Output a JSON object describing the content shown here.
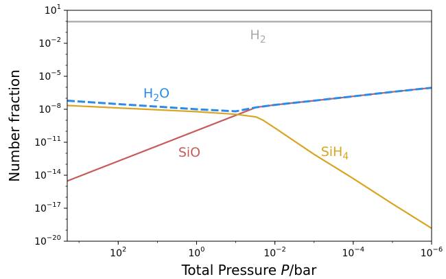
{
  "chart_data": {
    "type": "line",
    "xlabel_prefix": "Total Pressure ",
    "xlabel_var": "P",
    "xlabel_unit": "/bar",
    "ylabel": "Number fraction",
    "x_scale": "log",
    "x_reversed": true,
    "y_scale": "log",
    "xlim": [
      2000,
      1e-06
    ],
    "ylim": [
      1e-20,
      10
    ],
    "grid": false,
    "x_ticks": [
      {
        "value": 100,
        "base": "10",
        "exp": "2"
      },
      {
        "value": 1,
        "base": "10",
        "exp": "0"
      },
      {
        "value": 0.01,
        "base": "10",
        "exp": "−2"
      },
      {
        "value": 0.0001,
        "base": "10",
        "exp": "−4"
      },
      {
        "value": 1e-06,
        "base": "10",
        "exp": "−6"
      }
    ],
    "y_ticks": [
      {
        "value": 10,
        "base": "10",
        "exp": "1"
      },
      {
        "value": 0.01,
        "base": "10",
        "exp": "−2"
      },
      {
        "value": 1e-05,
        "base": "10",
        "exp": "−5"
      },
      {
        "value": 1e-08,
        "base": "10",
        "exp": "−8"
      },
      {
        "value": 1e-11,
        "base": "10",
        "exp": "−11"
      },
      {
        "value": 1e-14,
        "base": "10",
        "exp": "−14"
      },
      {
        "value": 1e-17,
        "base": "10",
        "exp": "−17"
      },
      {
        "value": 1e-20,
        "base": "10",
        "exp": "−20"
      }
    ],
    "series": [
      {
        "label_base": "H",
        "label_sub": "2",
        "label_tail": "",
        "color": "#a8a8a8",
        "dash": false,
        "x": [
          2000,
          1e-06
        ],
        "y": [
          0.93,
          0.93
        ]
      },
      {
        "label_base": "SiO",
        "label_sub": "",
        "label_tail": "",
        "color": "#c85a5a",
        "dash": false,
        "x": [
          2000,
          0.03,
          0.01,
          0.001,
          0.0001,
          1e-05,
          1e-06
        ],
        "y": [
          3e-15,
          1.5e-08,
          2.5e-08,
          6e-08,
          1.5e-07,
          3.8e-07,
          9e-07
        ]
      },
      {
        "label_base": "SiH",
        "label_sub": "4",
        "label_tail": "",
        "color": "#d9a520",
        "dash": false,
        "x": [
          2000,
          1,
          0.1,
          0.03,
          0.02,
          0.01,
          0.001,
          0.0001,
          1e-05,
          1e-06
        ],
        "y": [
          2.2e-08,
          6e-09,
          3.5e-09,
          2e-09,
          1e-09,
          2e-10,
          8e-13,
          5e-15,
          2.5e-17,
          1.5e-19
        ]
      },
      {
        "label_base": "H",
        "label_sub": "2",
        "label_tail": "O",
        "color": "#2b8ae8",
        "dash": true,
        "x": [
          2000,
          1,
          0.1,
          0.03,
          0.01,
          0.001,
          0.0001,
          1e-05,
          1e-06
        ],
        "y": [
          6e-08,
          1e-08,
          6.5e-09,
          1.5e-08,
          2.5e-08,
          6e-08,
          1.5e-07,
          3.8e-07,
          9e-07
        ]
      }
    ]
  }
}
